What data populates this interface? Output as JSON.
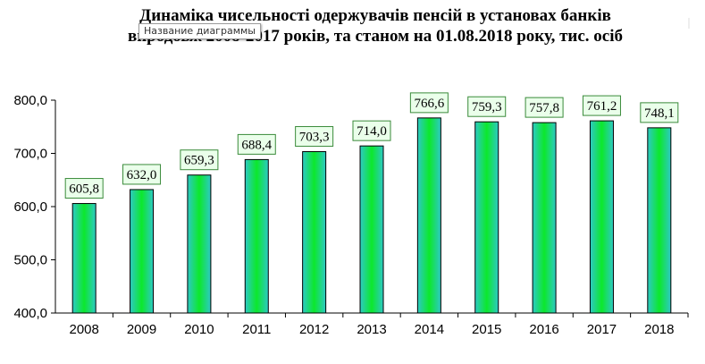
{
  "chart_data": {
    "type": "bar",
    "title": "Динаміка чисельності одержувачів пенсій в установах банків впродовж 2008-2017 років, та станом на 01.08.2018 року, тис. осіб",
    "title_lines": [
      "Динаміка чисельності одержувачів пенсій в установах банків",
      "впродовж 2008-2017 років, та станом на 01.08.2018 року, тис. осіб"
    ],
    "categories": [
      "2008",
      "2009",
      "2010",
      "2011",
      "2012",
      "2013",
      "2014",
      "2015",
      "2016",
      "2017",
      "2018"
    ],
    "values": [
      605.8,
      632.0,
      659.3,
      688.4,
      703.3,
      714.0,
      766.6,
      759.3,
      757.8,
      761.2,
      748.1
    ],
    "data_labels": [
      "605,8",
      "632,0",
      "659,3",
      "688,4",
      "703,3",
      "714,0",
      "766,6",
      "759,3",
      "757,8",
      "761,2",
      "748,1"
    ],
    "ylim": [
      400,
      800
    ],
    "y_ticks": [
      400,
      500,
      600,
      700,
      800
    ],
    "y_tick_labels": [
      "400,0",
      "500,0",
      "600,0",
      "700,0",
      "800,0"
    ],
    "xlabel": "",
    "ylabel": "",
    "grid": false,
    "legend": "none",
    "colors": {
      "bar_edge": "#2ec9c5",
      "bar_center": "#0cea2a",
      "bar_outline": "#000000",
      "label_fill": "#eaffea",
      "label_border": "#3a8a3a"
    }
  },
  "tooltip": {
    "text": "Название диаграммы"
  }
}
